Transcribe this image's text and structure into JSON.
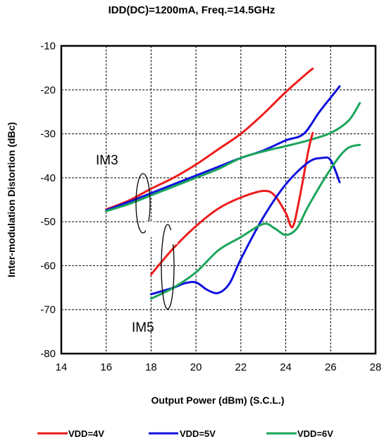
{
  "chart_data": {
    "type": "line",
    "title": "IDD(DC)=1200mA, Freq.=14.5GHz",
    "xlabel": "Output Power (dBm) (S.C.L.)",
    "ylabel": "Inter-modulation Distortion (dBc)",
    "xlim": [
      14,
      28
    ],
    "ylim": [
      -80,
      -10
    ],
    "xticks": [
      "14",
      "16",
      "18",
      "20",
      "22",
      "24",
      "26",
      "28"
    ],
    "yticks": [
      "-10",
      "-20",
      "-30",
      "-40",
      "-50",
      "-60",
      "-70",
      "-80"
    ],
    "grid": true,
    "legend_position": "bottom",
    "annotations": [
      "IM3",
      "IM5"
    ],
    "series": [
      {
        "name": "VDD=4V",
        "group": "IM3",
        "color": "#ee1c1c",
        "points": [
          [
            16,
            -47.2
          ],
          [
            17,
            -45.2
          ],
          [
            18,
            -42.5
          ],
          [
            19,
            -40.0
          ],
          [
            20,
            -37.0
          ],
          [
            21,
            -33.5
          ],
          [
            22,
            -30.0
          ],
          [
            23,
            -25.5
          ],
          [
            24,
            -20.5
          ],
          [
            25,
            -16.0
          ],
          [
            25.2,
            -15.2
          ]
        ]
      },
      {
        "name": "VDD=5V",
        "group": "IM3",
        "color": "#1010e0",
        "points": [
          [
            16,
            -47.4
          ],
          [
            17,
            -45.5
          ],
          [
            18,
            -43.5
          ],
          [
            19,
            -41.5
          ],
          [
            20,
            -39.5
          ],
          [
            21,
            -37.5
          ],
          [
            22,
            -35.5
          ],
          [
            23,
            -33.8
          ],
          [
            24,
            -31.5
          ],
          [
            24.8,
            -30.0
          ],
          [
            25.5,
            -25.0
          ],
          [
            26.2,
            -20.5
          ],
          [
            26.4,
            -19.2
          ]
        ]
      },
      {
        "name": "VDD=6V",
        "group": "IM3",
        "color": "#1aa55a",
        "points": [
          [
            16,
            -47.6
          ],
          [
            17,
            -46.0
          ],
          [
            18,
            -44.0
          ],
          [
            19,
            -42.0
          ],
          [
            20,
            -40.0
          ],
          [
            21,
            -38.0
          ],
          [
            22,
            -35.5
          ],
          [
            23,
            -34.0
          ],
          [
            24,
            -32.8
          ],
          [
            25,
            -31.5
          ],
          [
            26,
            -29.8
          ],
          [
            26.8,
            -27.0
          ],
          [
            27.3,
            -23.0
          ]
        ]
      },
      {
        "name": "VDD=4V",
        "group": "IM5",
        "color": "#ee1c1c",
        "points": [
          [
            18,
            -62.0
          ],
          [
            19,
            -56.0
          ],
          [
            20,
            -51.0
          ],
          [
            21,
            -47.0
          ],
          [
            22,
            -44.5
          ],
          [
            23,
            -43.0
          ],
          [
            23.5,
            -44.0
          ],
          [
            24,
            -48.0
          ],
          [
            24.3,
            -51.2
          ],
          [
            24.6,
            -45.0
          ],
          [
            25,
            -34.0
          ],
          [
            25.2,
            -29.8
          ]
        ]
      },
      {
        "name": "VDD=5V",
        "group": "IM5",
        "color": "#1010e0",
        "points": [
          [
            18,
            -66.5
          ],
          [
            19,
            -65.0
          ],
          [
            19.5,
            -64.0
          ],
          [
            20,
            -63.8
          ],
          [
            20.5,
            -65.5
          ],
          [
            21,
            -66.2
          ],
          [
            21.5,
            -64.0
          ],
          [
            22,
            -58.5
          ],
          [
            23,
            -49.0
          ],
          [
            24,
            -41.5
          ],
          [
            25,
            -36.5
          ],
          [
            25.6,
            -35.5
          ],
          [
            26,
            -36.0
          ],
          [
            26.4,
            -41.0
          ]
        ]
      },
      {
        "name": "VDD=6V",
        "group": "IM5",
        "color": "#1aa55a",
        "points": [
          [
            18,
            -67.5
          ],
          [
            19,
            -65.0
          ],
          [
            20,
            -61.5
          ],
          [
            21,
            -56.5
          ],
          [
            22,
            -53.5
          ],
          [
            23,
            -50.5
          ],
          [
            23.5,
            -51.5
          ],
          [
            24,
            -53.0
          ],
          [
            24.5,
            -51.5
          ],
          [
            25,
            -46.5
          ],
          [
            26,
            -38.0
          ],
          [
            26.7,
            -33.5
          ],
          [
            27.3,
            -32.5
          ]
        ]
      }
    ]
  },
  "legend": [
    {
      "label": "VDD=4V",
      "color": "#ee1c1c"
    },
    {
      "label": "VDD=5V",
      "color": "#1010e0"
    },
    {
      "label": "VDD=6V",
      "color": "#1aa55a"
    }
  ]
}
